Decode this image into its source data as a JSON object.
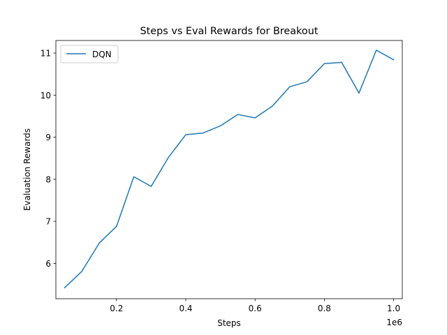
{
  "chart_data": {
    "type": "line",
    "title": "Steps vs Eval Rewards for Breakout",
    "xlabel": "Steps",
    "ylabel": "Evaluation Rewards",
    "x_offset_label": "1e6",
    "xlim": [
      0.025,
      1.025
    ],
    "ylim": [
      5.16,
      11.3
    ],
    "x_ticks": [
      0.2,
      0.4,
      0.6,
      0.8,
      1.0
    ],
    "x_tick_labels": [
      "0.2",
      "0.4",
      "0.6",
      "0.8",
      "1.0"
    ],
    "y_ticks": [
      6,
      7,
      8,
      9,
      10,
      11
    ],
    "y_tick_labels": [
      "6",
      "7",
      "8",
      "9",
      "10",
      "11"
    ],
    "grid": false,
    "legend_position": "upper-left",
    "series": [
      {
        "name": "DQN",
        "color": "#1f77b4",
        "x": [
          0.05,
          0.1,
          0.15,
          0.2,
          0.25,
          0.3,
          0.35,
          0.4,
          0.45,
          0.5,
          0.55,
          0.6,
          0.65,
          0.7,
          0.75,
          0.8,
          0.85,
          0.9,
          0.95,
          1.0
        ],
        "y": [
          5.42,
          5.81,
          6.48,
          6.88,
          8.06,
          7.83,
          8.52,
          9.06,
          9.1,
          9.27,
          9.54,
          9.46,
          9.74,
          10.2,
          10.32,
          10.75,
          10.78,
          10.05,
          11.07,
          10.84
        ]
      }
    ]
  }
}
